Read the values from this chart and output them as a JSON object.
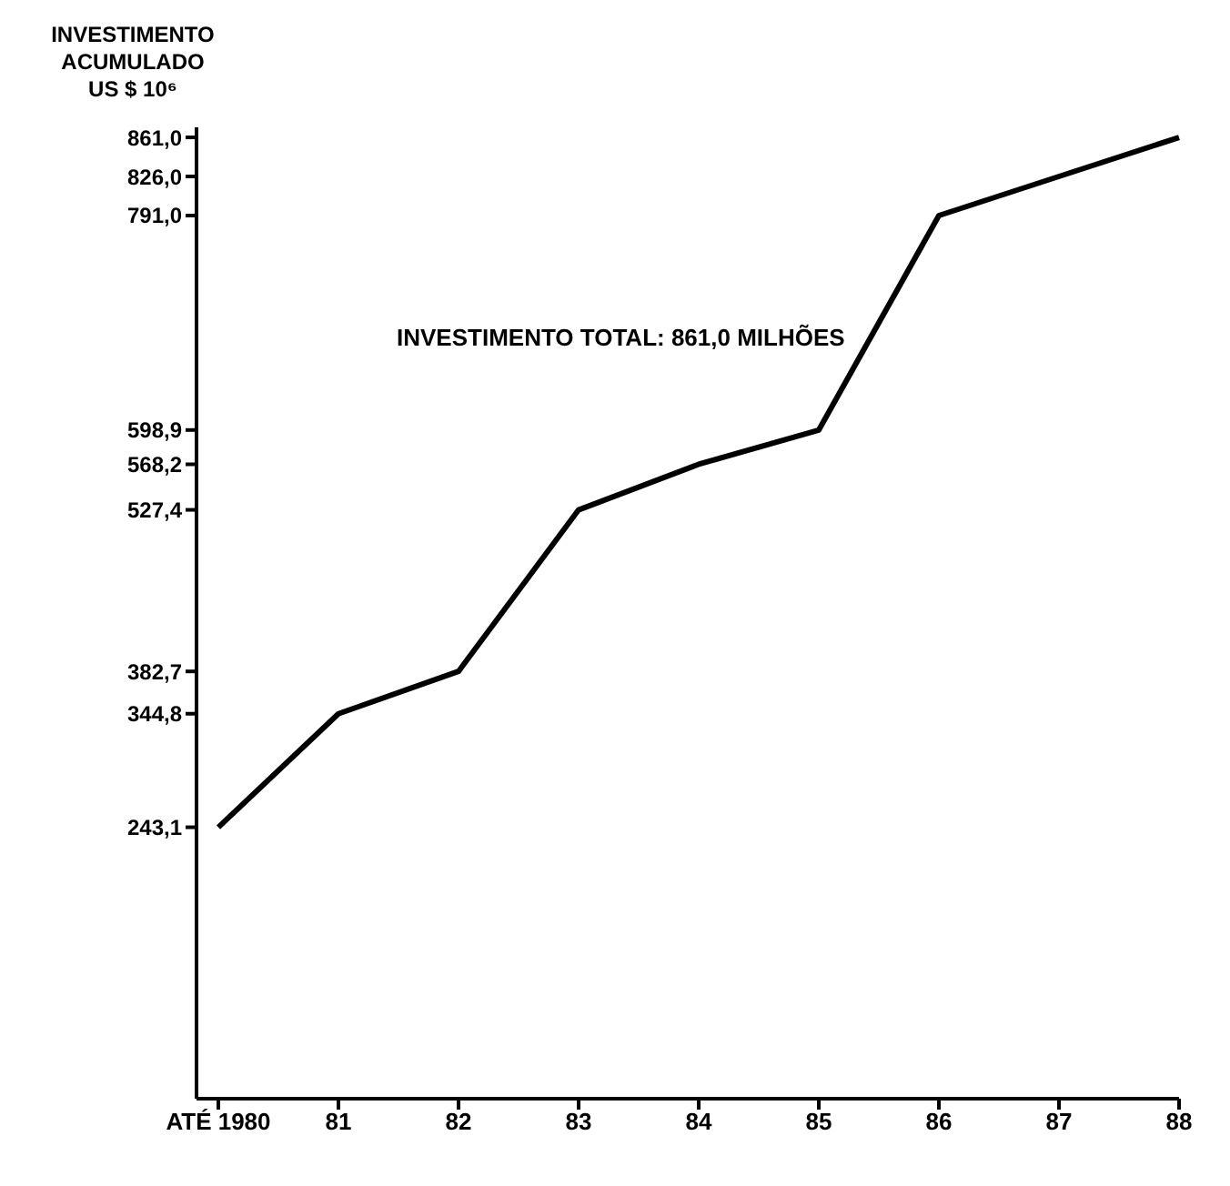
{
  "chart_data": {
    "type": "line",
    "ylabel": "INVESTIMENTO\nACUMULADO\nUS $ 10⁶",
    "annotations": [
      "INVESTIMENTO TOTAL: 861,0 MILHÕES"
    ],
    "categories": [
      "ATÉ 1980",
      "81",
      "82",
      "83",
      "84",
      "85",
      "86",
      "87",
      "88"
    ],
    "series": [
      {
        "color": "#000000",
        "values": [
          243.1,
          344.8,
          382.7,
          527.4,
          568.2,
          598.9,
          791.0,
          826.0,
          861.0
        ]
      }
    ],
    "ylim": [
      0,
      870
    ],
    "yticks": [
      {
        "value": 243.1,
        "label": "243,1"
      },
      {
        "value": 344.8,
        "label": "344,8"
      },
      {
        "value": 382.7,
        "label": "382,7"
      },
      {
        "value": 527.4,
        "label": "527,4"
      },
      {
        "value": 568.2,
        "label": "568,2"
      },
      {
        "value": 598.9,
        "label": "598,9"
      },
      {
        "value": 791.0,
        "label": "791,0"
      },
      {
        "value": 826.0,
        "label": "826,0"
      },
      {
        "value": 861.0,
        "label": "861,0"
      }
    ],
    "grid": false,
    "marker": "none",
    "line_style": "solid"
  }
}
